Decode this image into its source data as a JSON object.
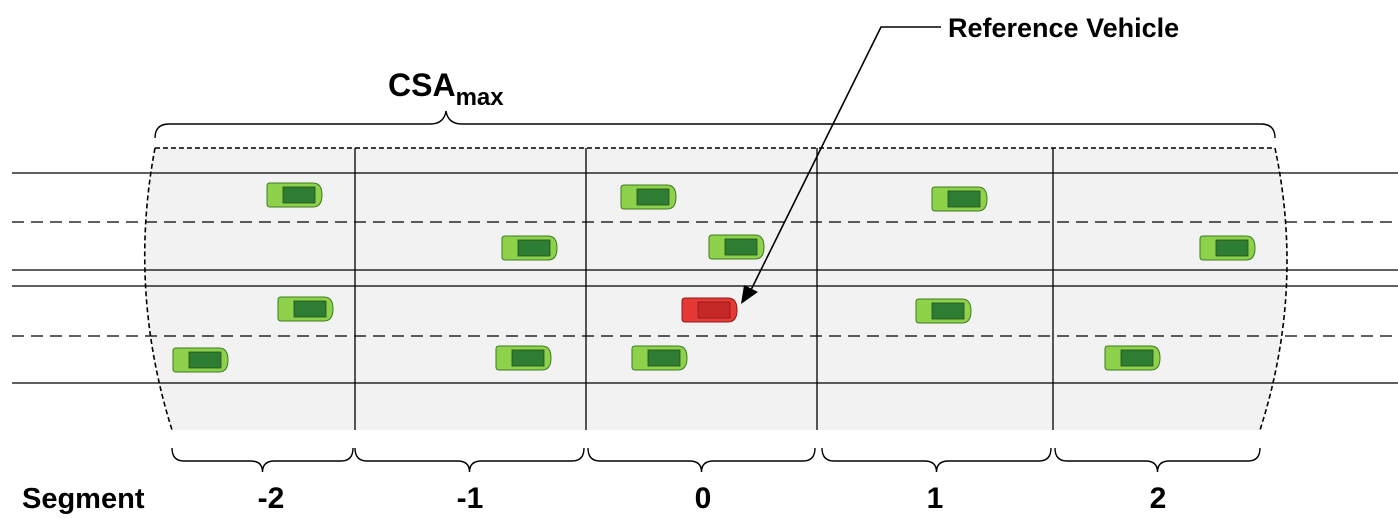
{
  "csa_label": {
    "main": "CSA",
    "subscript": "max"
  },
  "reference_label": "Reference Vehicle",
  "segment_title": "Segment",
  "segments": [
    "-2",
    "-1",
    "0",
    "1",
    "2"
  ],
  "colors": {
    "road_area": "#f2f2f2",
    "car_body": "#8ed14b",
    "car_roof": "#2e7d32",
    "car_outline": "#3f7a1f",
    "reference_body": "#e53935",
    "reference_roof": "#c62828",
    "reference_outline": "#8b1a1a"
  }
}
